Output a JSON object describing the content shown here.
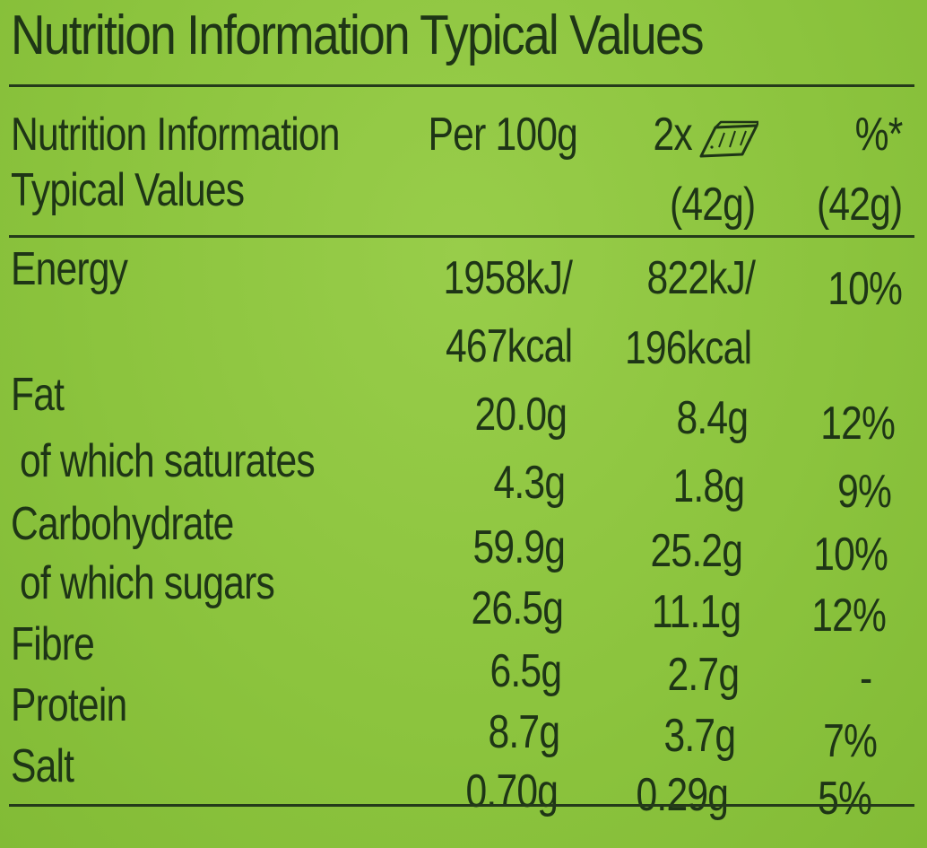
{
  "title": "Nutrition Information Typical Values",
  "header": {
    "label_line1": "Nutrition Information",
    "label_line2": "Typical Values",
    "col_per100": "Per 100g",
    "col_serving_prefix": "2x",
    "col_serving_icon": "cereal-bar-icon",
    "col_serving_weight": "(42g)",
    "col_pct": "%*",
    "col_pct_weight": "(42g)"
  },
  "rows": [
    {
      "name": "Energy",
      "per100": "1958kJ/",
      "serving": "822kJ/",
      "pct": "10%"
    },
    {
      "name": "",
      "per100": "467kcal",
      "serving": "196kcal",
      "pct": ""
    },
    {
      "name": "Fat",
      "per100": "20.0g",
      "serving": "8.4g",
      "pct": "12%"
    },
    {
      "name": "of which saturates",
      "per100": "4.3g",
      "serving": "1.8g",
      "pct": "9%"
    },
    {
      "name": "Carbohydrate",
      "per100": "59.9g",
      "serving": "25.2g",
      "pct": "10%"
    },
    {
      "name": "of which sugars",
      "per100": "26.5g",
      "serving": "11.1g",
      "pct": "12%"
    },
    {
      "name": "Fibre",
      "per100": "6.5g",
      "serving": "2.7g",
      "pct": "-"
    },
    {
      "name": "Protein",
      "per100": "8.7g",
      "serving": "3.7g",
      "pct": "7%"
    },
    {
      "name": "Salt",
      "per100": "0.70g",
      "serving": "0.29g",
      "pct": "5%"
    }
  ],
  "colors": {
    "background": "#8ec63f",
    "text": "#1e3516"
  }
}
